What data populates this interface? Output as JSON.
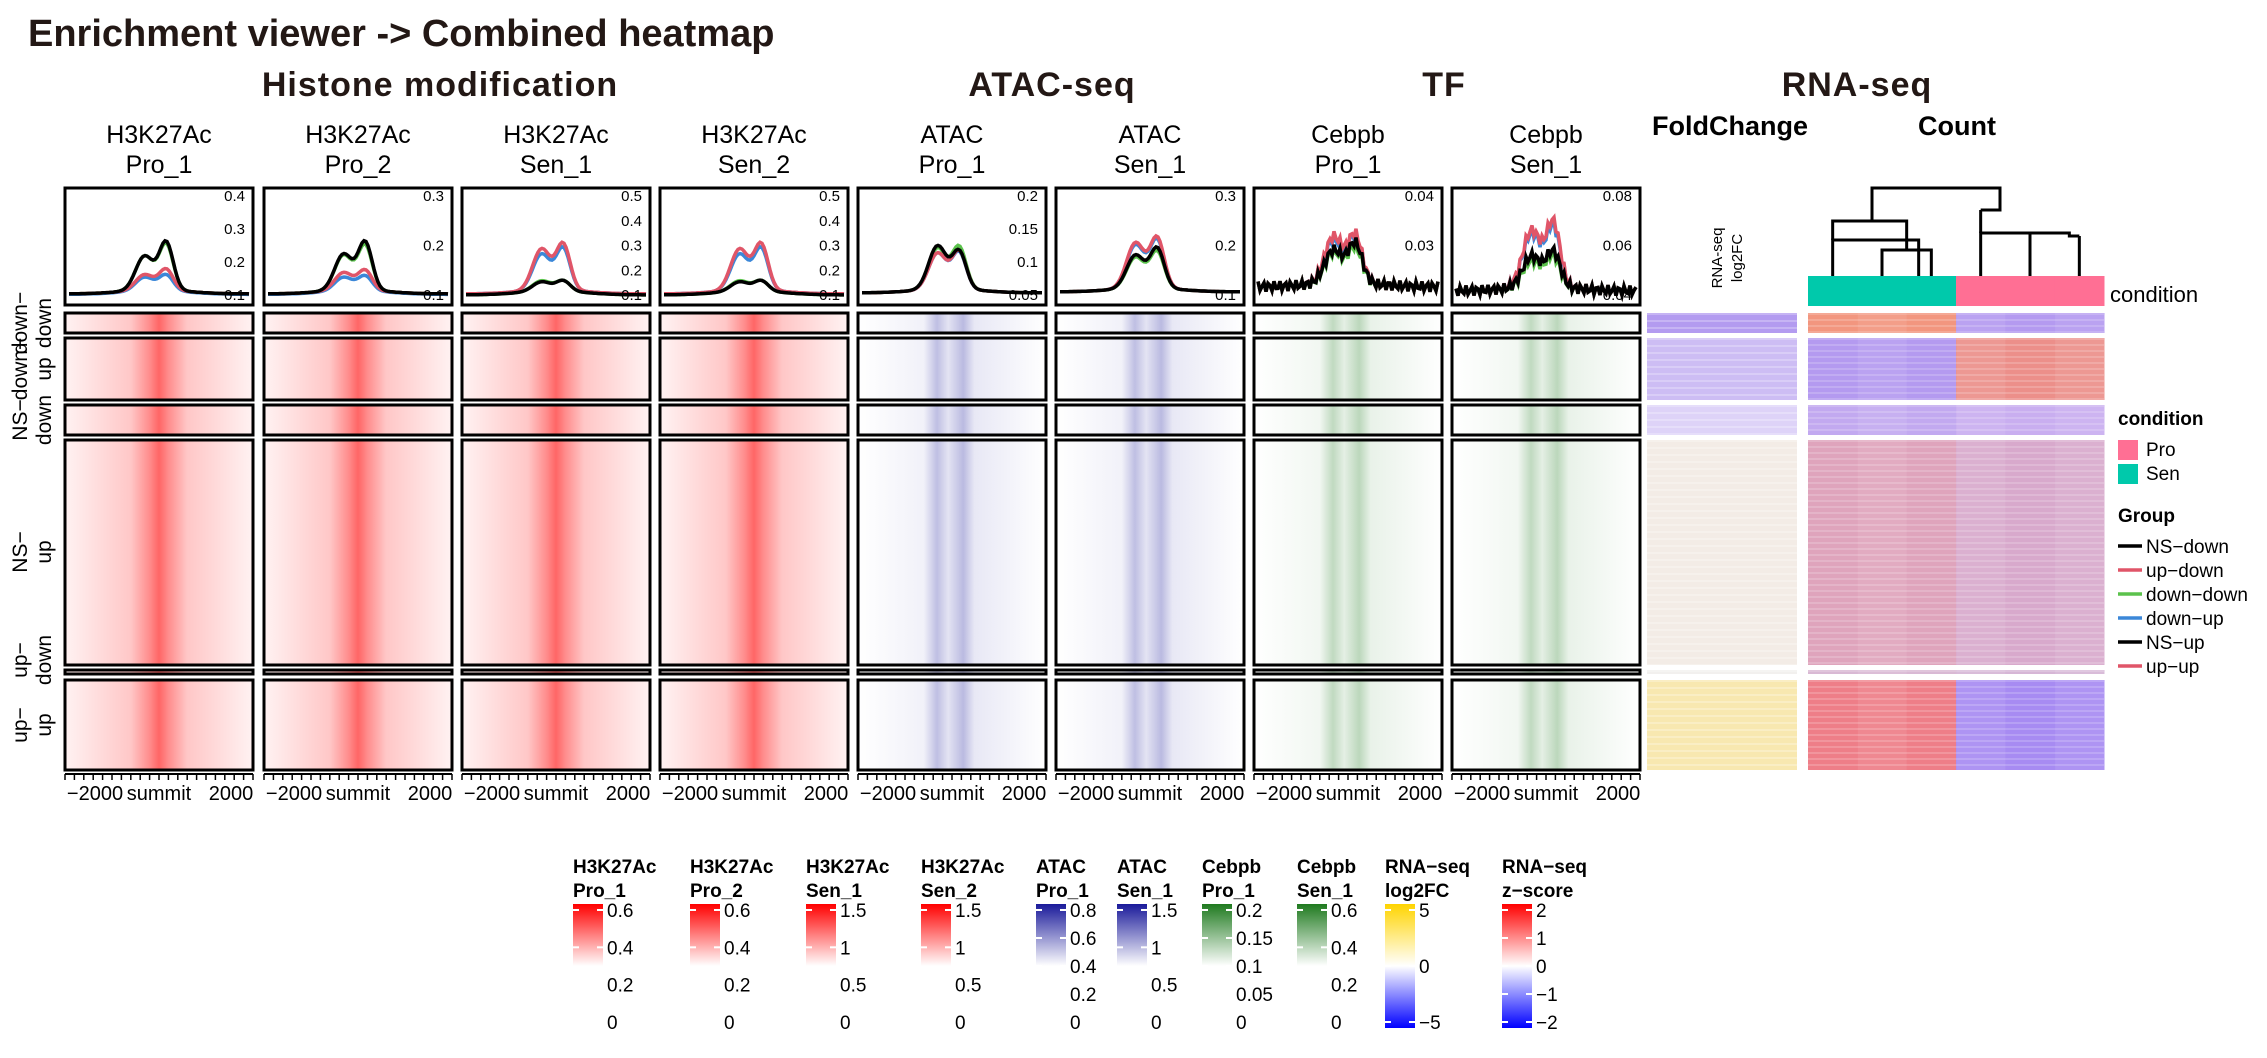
{
  "page": {
    "title": "Enrichment viewer -> Combined heatmap",
    "section_headers": [
      "Histone modification",
      "ATAC-seq",
      "TF",
      "RNA-seq"
    ],
    "rna_subheaders": [
      "FoldChange",
      "Count"
    ],
    "rna_fc_column_label": "RNA-seq\nlog2FC"
  },
  "colors": {
    "red": "#ff0000",
    "blue": "#1a1a9a",
    "green": "#1f7a1f",
    "pro": "#ff6f94",
    "sen": "#00c9ab",
    "line_ns": "#000000",
    "line_up": "#e05568",
    "line_downdown": "#5bc24c",
    "line_downup": "#3b87d8"
  },
  "chart_data": {
    "type": "heatmap",
    "columns": [
      {
        "label": "H3K27Ac\nPro_1",
        "color": "#ff0000",
        "profile_ticks": [
          "0.4",
          "0.3",
          "0.2",
          "0.1"
        ]
      },
      {
        "label": "H3K27Ac\nPro_2",
        "color": "#ff0000",
        "profile_ticks": [
          "0.3",
          "0.2",
          "0.1"
        ]
      },
      {
        "label": "H3K27Ac\nSen_1",
        "color": "#ff0000",
        "profile_ticks": [
          "0.5",
          "0.4",
          "0.3",
          "0.2",
          "0.1"
        ]
      },
      {
        "label": "H3K27Ac\nSen_2",
        "color": "#ff0000",
        "profile_ticks": [
          "0.5",
          "0.4",
          "0.3",
          "0.2",
          "0.1"
        ]
      },
      {
        "label": "ATAC\nPro_1",
        "color": "#1a1a9a",
        "profile_ticks": [
          "0.2",
          "0.15",
          "0.1",
          "0.05"
        ]
      },
      {
        "label": "ATAC\nSen_1",
        "color": "#1a1a9a",
        "profile_ticks": [
          "0.3",
          "0.2",
          "0.1"
        ]
      },
      {
        "label": "Cebpb\nPro_1",
        "color": "#1f7a1f",
        "profile_ticks": [
          "0.04",
          "0.03"
        ]
      },
      {
        "label": "Cebpb\nSen_1",
        "color": "#1f7a1f",
        "profile_ticks": [
          "0.08",
          "0.06",
          "0.04"
        ]
      }
    ],
    "groups": [
      {
        "label": "down−\ndown",
        "fc": "#b39bf0",
        "count_pro": "#f2967f",
        "count_sen": "#b49af0"
      },
      {
        "label": "down−\nup",
        "fc": "#cdbdf4",
        "count_pro": "#b49af0",
        "count_sen": "#ec8f8a"
      },
      {
        "label": "NS−\ndown",
        "fc": "#ded3f8",
        "count_pro": "#c2a9f0",
        "count_sen": "#c9aef0"
      },
      {
        "label": "NS−\nup",
        "fc": "#f3ece6",
        "count_pro": "#dfa4bc",
        "count_sen": "#d8a9cc"
      },
      {
        "label": "up−\ndown",
        "fc": "#f2f0ee",
        "count_pro": "#d9b9d4",
        "count_sen": "#d6b6d6"
      },
      {
        "label": "up−\nup",
        "fc": "#f8e8b0",
        "count_pro": "#ee7e88",
        "count_sen": "#a78bf2"
      }
    ],
    "x_ticks": [
      "−2000",
      "summit",
      "2000"
    ],
    "annotation": {
      "label": "condition",
      "pattern": [
        "Sen",
        "Sen",
        "Sen",
        "Pro",
        "Pro",
        "Pro"
      ]
    },
    "legend_condition": {
      "title": "condition",
      "items": [
        {
          "name": "Pro",
          "color": "#ff6f94"
        },
        {
          "name": "Sen",
          "color": "#00c9ab"
        }
      ]
    },
    "legend_group": {
      "title": "Group",
      "items": [
        {
          "name": "NS−down",
          "color": "#000000"
        },
        {
          "name": "up−down",
          "color": "#e05568"
        },
        {
          "name": "down−down",
          "color": "#5bc24c"
        },
        {
          "name": "down−up",
          "color": "#3b87d8"
        },
        {
          "name": "NS−up",
          "color": "#000000"
        },
        {
          "name": "up−up",
          "color": "#e05568"
        }
      ]
    },
    "colorbars": [
      {
        "title": "H3K27Ac\nPro_1",
        "ticks": [
          "0.6",
          "0.4",
          "0.2",
          "0"
        ],
        "top": "#ff0000",
        "mid": "#ffffff",
        "bottom": "#ffffff"
      },
      {
        "title": "H3K27Ac\nPro_2",
        "ticks": [
          "0.6",
          "0.4",
          "0.2",
          "0"
        ],
        "top": "#ff0000",
        "mid": "#ffffff",
        "bottom": "#ffffff"
      },
      {
        "title": "H3K27Ac\nSen_1",
        "ticks": [
          "1.5",
          "1",
          "0.5",
          "0"
        ],
        "top": "#ff0000",
        "mid": "#ffffff",
        "bottom": "#ffffff"
      },
      {
        "title": "H3K27Ac\nSen_2",
        "ticks": [
          "1.5",
          "1",
          "0.5",
          "0"
        ],
        "top": "#ff0000",
        "mid": "#ffffff",
        "bottom": "#ffffff"
      },
      {
        "title": "ATAC\nPro_1",
        "ticks": [
          "0.8",
          "0.6",
          "0.4",
          "0.2",
          "0"
        ],
        "top": "#1a1a9a",
        "mid": "#ffffff",
        "bottom": "#ffffff"
      },
      {
        "title": "ATAC\nSen_1",
        "ticks": [
          "1.5",
          "1",
          "0.5",
          "0"
        ],
        "top": "#1a1a9a",
        "mid": "#ffffff",
        "bottom": "#ffffff"
      },
      {
        "title": "Cebpb\nPro_1",
        "ticks": [
          "0.2",
          "0.15",
          "0.1",
          "0.05",
          "0"
        ],
        "top": "#1f7a1f",
        "mid": "#ffffff",
        "bottom": "#ffffff"
      },
      {
        "title": "Cebpb\nSen_1",
        "ticks": [
          "0.6",
          "0.4",
          "0.2",
          "0"
        ],
        "top": "#1f7a1f",
        "mid": "#ffffff",
        "bottom": "#ffffff"
      },
      {
        "title": "RNA−seq\nlog2FC",
        "ticks": [
          "5",
          "0",
          "−5"
        ],
        "top": "#ffd400",
        "mid": "#ffffff",
        "bottom": "#0000ff"
      },
      {
        "title": "RNA−seq\nz−score",
        "ticks": [
          "2",
          "1",
          "0",
          "−1",
          "−2"
        ],
        "top": "#ff0000",
        "mid": "#ffffff",
        "bottom": "#0000ff"
      }
    ]
  }
}
